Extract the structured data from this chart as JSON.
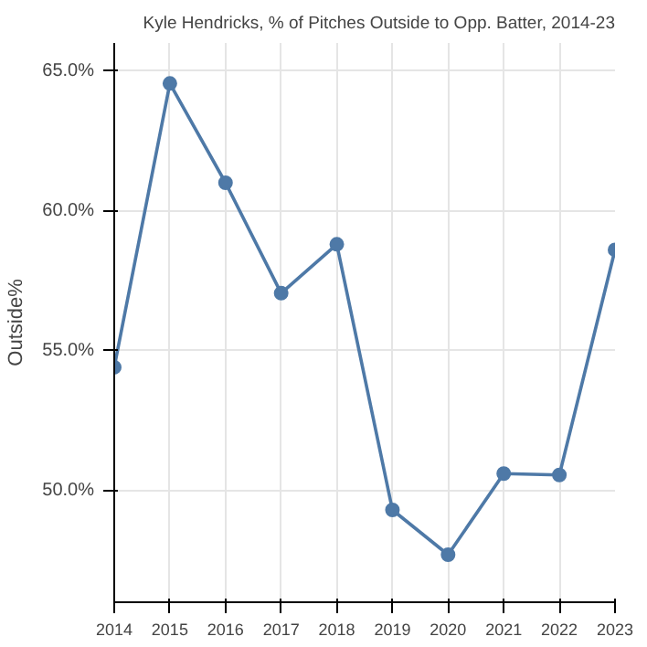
{
  "chart_data": {
    "type": "line",
    "title": "Kyle Hendricks, % of Pitches Outside to Opp. Batter, 2014-23",
    "ylabel": "Outside%",
    "x": [
      2014,
      2015,
      2016,
      2017,
      2018,
      2019,
      2020,
      2021,
      2022,
      2023
    ],
    "series": [
      {
        "color": "#4e79a7",
        "values": [
          54.4,
          64.55,
          61.0,
          57.05,
          58.8,
          49.3,
          47.7,
          50.6,
          50.55,
          58.6
        ]
      }
    ],
    "xlim": [
      2014,
      2023
    ],
    "xticks": [
      2014,
      2015,
      2016,
      2017,
      2018,
      2019,
      2020,
      2021,
      2022,
      2023
    ],
    "ylim": [
      46,
      66
    ],
    "yticks": [
      {
        "value": 50,
        "label": "50.0%"
      },
      {
        "value": 55,
        "label": "55.0%"
      },
      {
        "value": 60,
        "label": "60.0%"
      },
      {
        "value": 65,
        "label": "65.0%"
      }
    ],
    "grid": true,
    "marker": "circle",
    "line_style": "solid"
  }
}
